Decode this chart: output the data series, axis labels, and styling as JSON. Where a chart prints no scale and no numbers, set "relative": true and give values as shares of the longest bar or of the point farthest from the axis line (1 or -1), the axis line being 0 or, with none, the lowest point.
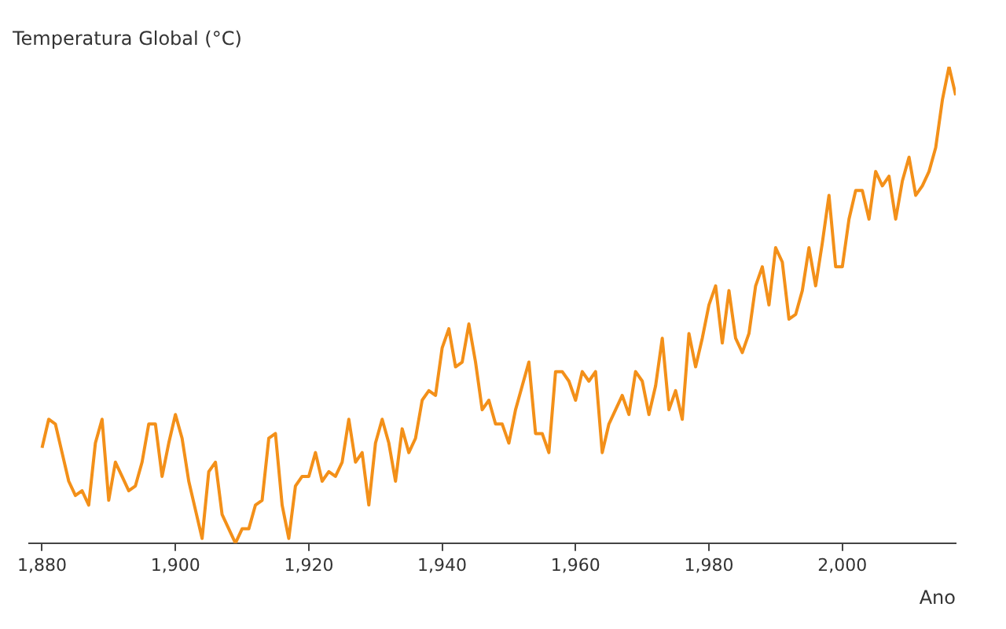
{
  "chart_data": {
    "type": "line",
    "ylabel": "Temperatura Global (°C)",
    "xlabel": "Ano",
    "relative": true,
    "grid": false,
    "legend": false,
    "marker": "none",
    "line_style": "solid",
    "xlim": [
      1878,
      2017
    ],
    "xticks": [
      {
        "value": 1880,
        "label": "1,880"
      },
      {
        "value": 1900,
        "label": "1,900"
      },
      {
        "value": 1920,
        "label": "1,920"
      },
      {
        "value": 1940,
        "label": "1,940"
      },
      {
        "value": 1960,
        "label": "1,960"
      },
      {
        "value": 1980,
        "label": "1,980"
      },
      {
        "value": 2000,
        "label": "2,000"
      }
    ],
    "x": [
      1880,
      1881,
      1882,
      1883,
      1884,
      1885,
      1886,
      1887,
      1888,
      1889,
      1890,
      1891,
      1892,
      1893,
      1894,
      1895,
      1896,
      1897,
      1898,
      1899,
      1900,
      1901,
      1902,
      1903,
      1904,
      1905,
      1906,
      1907,
      1908,
      1909,
      1910,
      1911,
      1912,
      1913,
      1914,
      1915,
      1916,
      1917,
      1918,
      1919,
      1920,
      1921,
      1922,
      1923,
      1924,
      1925,
      1926,
      1927,
      1928,
      1929,
      1930,
      1931,
      1932,
      1933,
      1934,
      1935,
      1936,
      1937,
      1938,
      1939,
      1940,
      1941,
      1942,
      1943,
      1944,
      1945,
      1946,
      1947,
      1948,
      1949,
      1950,
      1951,
      1952,
      1953,
      1954,
      1955,
      1956,
      1957,
      1958,
      1959,
      1960,
      1961,
      1962,
      1963,
      1964,
      1965,
      1966,
      1967,
      1968,
      1969,
      1970,
      1971,
      1972,
      1973,
      1974,
      1975,
      1976,
      1977,
      1978,
      1979,
      1980,
      1981,
      1982,
      1983,
      1984,
      1985,
      1986,
      1987,
      1988,
      1989,
      1990,
      1991,
      1992,
      1993,
      1994,
      1995,
      1996,
      1997,
      1998,
      1999,
      2000,
      2001,
      2002,
      2003,
      2004,
      2005,
      2006,
      2007,
      2008,
      2009,
      2010,
      2011,
      2012,
      2013,
      2014,
      2015,
      2016,
      2017
    ],
    "series": [
      {
        "color": "#f39019",
        "values": [
          0.2,
          0.26,
          0.25,
          0.19,
          0.13,
          0.1,
          0.11,
          0.08,
          0.21,
          0.26,
          0.09,
          0.17,
          0.14,
          0.11,
          0.12,
          0.17,
          0.25,
          0.25,
          0.14,
          0.21,
          0.27,
          0.22,
          0.13,
          0.07,
          0.01,
          0.15,
          0.17,
          0.06,
          0.03,
          0,
          0.03,
          0.03,
          0.08,
          0.09,
          0.22,
          0.23,
          0.08,
          0.01,
          0.12,
          0.14,
          0.14,
          0.19,
          0.13,
          0.15,
          0.14,
          0.17,
          0.26,
          0.17,
          0.19,
          0.08,
          0.21,
          0.26,
          0.21,
          0.13,
          0.24,
          0.19,
          0.22,
          0.3,
          0.32,
          0.31,
          0.41,
          0.45,
          0.37,
          0.38,
          0.46,
          0.38,
          0.28,
          0.3,
          0.25,
          0.25,
          0.21,
          0.28,
          0.33,
          0.38,
          0.23,
          0.23,
          0.19,
          0.36,
          0.36,
          0.34,
          0.3,
          0.36,
          0.34,
          0.36,
          0.19,
          0.25,
          0.28,
          0.31,
          0.27,
          0.36,
          0.34,
          0.27,
          0.33,
          0.43,
          0.28,
          0.32,
          0.26,
          0.44,
          0.37,
          0.43,
          0.5,
          0.54,
          0.42,
          0.53,
          0.43,
          0.4,
          0.44,
          0.54,
          0.58,
          0.5,
          0.62,
          0.59,
          0.47,
          0.48,
          0.53,
          0.62,
          0.54,
          0.63,
          0.73,
          0.58,
          0.58,
          0.68,
          0.74,
          0.74,
          0.68,
          0.78,
          0.75,
          0.77,
          0.68,
          0.76,
          0.81,
          0.73,
          0.75,
          0.78,
          0.83,
          0.93,
          1,
          0.94
        ]
      }
    ]
  }
}
